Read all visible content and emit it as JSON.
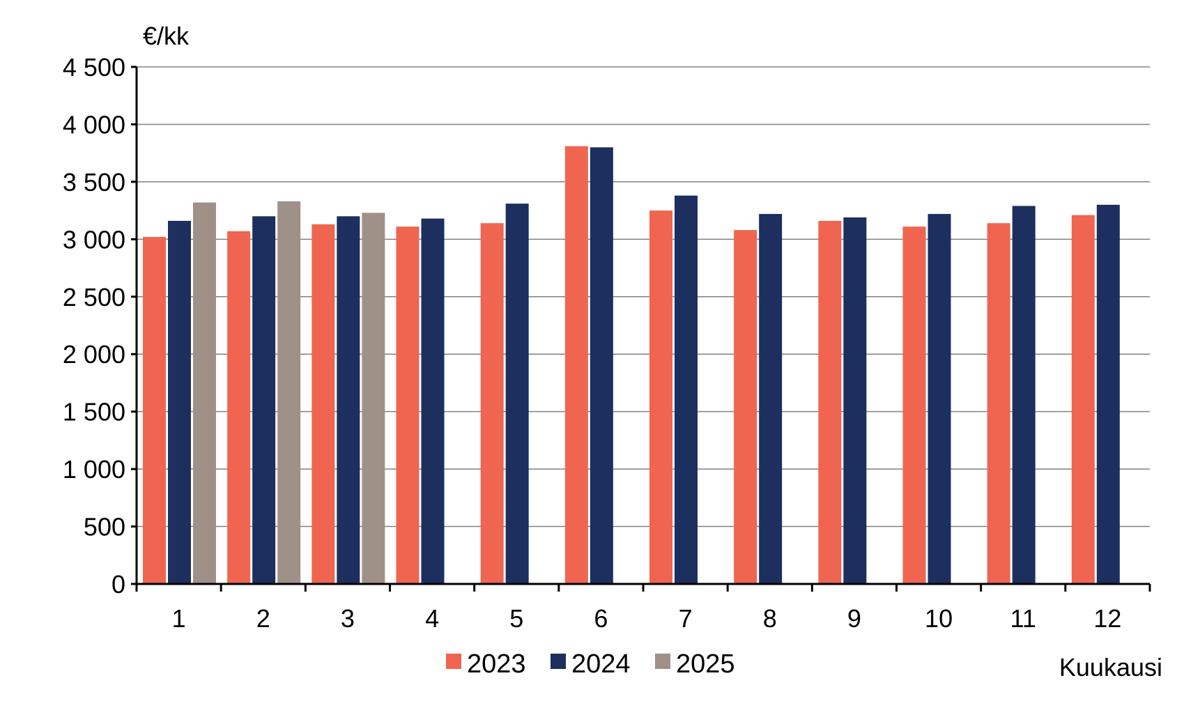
{
  "chart_data": {
    "type": "bar",
    "title": "",
    "ylabel": "€/kk",
    "xlabel": "Kuukausi",
    "ylim": [
      0,
      4500
    ],
    "yticks": [
      0,
      500,
      1000,
      1500,
      2000,
      2500,
      3000,
      3500,
      4000,
      4500
    ],
    "ytick_labels": [
      "0",
      "500",
      "1 000",
      "1 500",
      "2 000",
      "2 500",
      "3 000",
      "3 500",
      "4 000",
      "4 500"
    ],
    "categories": [
      "1",
      "2",
      "3",
      "4",
      "5",
      "6",
      "7",
      "8",
      "9",
      "10",
      "11",
      "12"
    ],
    "grid": true,
    "legend_position": "bottom-center",
    "series": [
      {
        "name": "2023",
        "color": "#f0654f",
        "values": [
          3020,
          3070,
          3130,
          3110,
          3140,
          3810,
          3250,
          3080,
          3160,
          3110,
          3140,
          3210
        ]
      },
      {
        "name": "2024",
        "color": "#1c2f5e",
        "values": [
          3160,
          3200,
          3200,
          3180,
          3310,
          3800,
          3380,
          3220,
          3190,
          3220,
          3290,
          3300
        ]
      },
      {
        "name": "2025",
        "color": "#a09188",
        "values": [
          3320,
          3330,
          3230,
          null,
          null,
          null,
          null,
          null,
          null,
          null,
          null,
          null
        ]
      }
    ]
  }
}
